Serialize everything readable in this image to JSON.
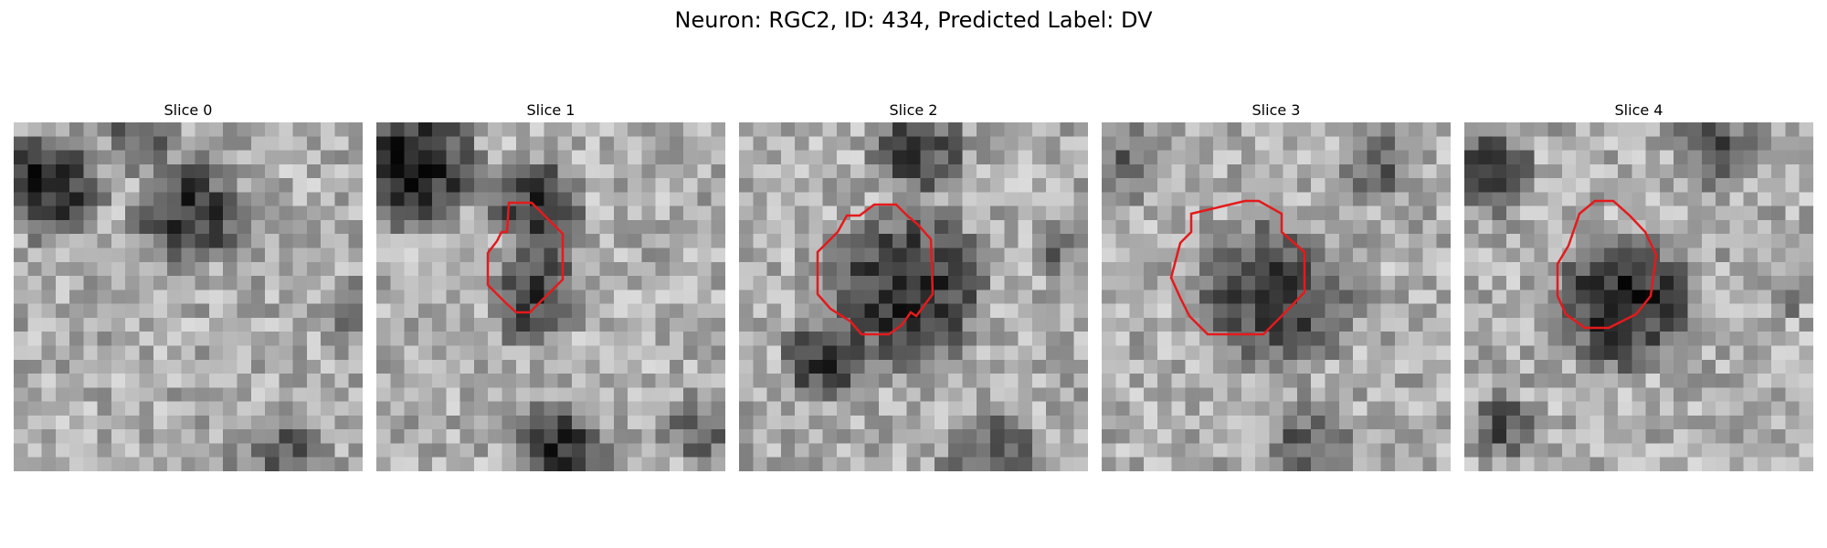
{
  "figure": {
    "title": "Neuron: RGC2, ID: 434, Predicted Label: DV"
  },
  "contour_color": "#e41a1c",
  "panels": [
    {
      "title": "Slice 0"
    },
    {
      "title": "Slice 1"
    },
    {
      "title": "Slice 2"
    },
    {
      "title": "Slice 3"
    },
    {
      "title": "Slice 4"
    }
  ]
}
